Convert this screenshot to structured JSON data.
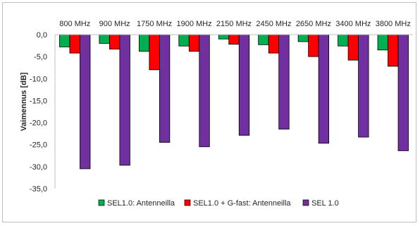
{
  "chart_data": {
    "type": "bar",
    "title": "",
    "xlabel": "",
    "ylabel": "Vaimennus [dB]",
    "ylim": [
      -35,
      0
    ],
    "yticks": [
      "0,0",
      "-5,0",
      "-10,0",
      "-15,0",
      "-20,0",
      "-25,0",
      "-30,0",
      "-35,0"
    ],
    "categories": [
      "800 MHz",
      "900 MHz",
      "1750 MHz",
      "1900 MHz",
      "2150 MHz",
      "2450 MHz",
      "2650 MHz",
      "3400 MHz",
      "3800 MHz"
    ],
    "series": [
      {
        "name": "SEL1.0: Antenneilla",
        "color": "#00b050",
        "values": [
          -2.8,
          -2.0,
          -3.8,
          -2.6,
          -1.0,
          -2.3,
          -1.6,
          -2.6,
          -3.5
        ]
      },
      {
        "name": "SEL1.0 + G-fast: Antenneilla",
        "color": "#ff0000",
        "values": [
          -4.2,
          -3.3,
          -8.0,
          -3.8,
          -2.2,
          -4.2,
          -5.0,
          -5.8,
          -7.2
        ]
      },
      {
        "name": "SEL 1.0",
        "color": "#7030a0",
        "values": [
          -30.5,
          -29.7,
          -24.5,
          -25.5,
          -22.9,
          -21.5,
          -24.7,
          -23.3,
          -26.4
        ]
      }
    ],
    "grid": false,
    "legend": "bottom"
  }
}
